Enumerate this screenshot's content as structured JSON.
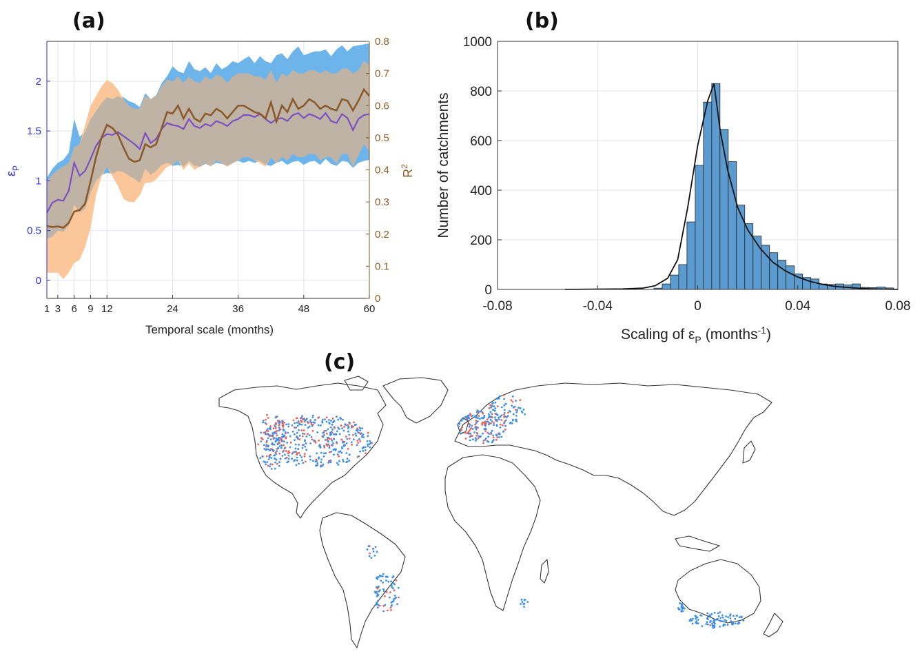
{
  "panels": {
    "a": "(a)",
    "b": "(b)",
    "c": "(c)"
  },
  "colors": {
    "eps_axis": "#2b2be0",
    "r2_axis": "#8a5a1f",
    "eps_band": "#6cb4ea",
    "r2_band": "#fbc79a",
    "overlap_band": "#bfb3a6",
    "eps_line": "#7b4fbf",
    "r2_line": "#8b5a2b",
    "hist_bar": "#5b9bd0",
    "hist_edge": "#222222",
    "positive_dot": "#3b8fe8",
    "negative_dot": "#f0605a",
    "coast": "#333333"
  },
  "chart_data": [
    {
      "id": "a",
      "type": "line",
      "xlabel": "Temporal scale (months)",
      "ylabel_left": "ε",
      "ylabel_left_sub": "P",
      "ylabel_right": "R",
      "ylabel_right_sup": "2",
      "xticks": [
        1,
        3,
        6,
        9,
        12,
        24,
        36,
        48,
        60
      ],
      "yticks_left": [
        "0",
        "0.5",
        "1",
        "1.5",
        "2"
      ],
      "yticks_right": [
        "0",
        "0.1",
        "0.2",
        "0.3",
        "0.4",
        "0.5",
        "0.6",
        "0.7",
        "0.8"
      ],
      "xlim": [
        1,
        60
      ],
      "ylim_left": [
        -0.18,
        2.4
      ],
      "ylim_right": [
        0,
        0.8
      ],
      "grid": true,
      "x": [
        1,
        2,
        3,
        4,
        5,
        6,
        7,
        8,
        9,
        10,
        11,
        12,
        13,
        14,
        15,
        16,
        17,
        18,
        19,
        20,
        21,
        22,
        23,
        24,
        25,
        26,
        27,
        28,
        29,
        30,
        31,
        32,
        33,
        34,
        35,
        36,
        37,
        38,
        39,
        40,
        41,
        42,
        43,
        44,
        45,
        46,
        47,
        48,
        49,
        50,
        51,
        52,
        53,
        54,
        55,
        56,
        57,
        58,
        59,
        60
      ],
      "series": [
        {
          "axis": "left",
          "median": [
            0.68,
            0.78,
            0.81,
            0.8,
            0.9,
            1.18,
            1.05,
            1.1,
            1.22,
            1.35,
            1.43,
            1.47,
            1.46,
            1.49,
            1.45,
            1.41,
            1.37,
            1.32,
            1.48,
            1.38,
            1.42,
            1.52,
            1.58,
            1.56,
            1.55,
            1.52,
            1.62,
            1.55,
            1.53,
            1.57,
            1.55,
            1.6,
            1.58,
            1.55,
            1.6,
            1.62,
            1.66,
            1.66,
            1.64,
            1.67,
            1.62,
            1.58,
            1.62,
            1.63,
            1.6,
            1.66,
            1.68,
            1.63,
            1.67,
            1.65,
            1.62,
            1.68,
            1.6,
            1.58,
            1.67,
            1.63,
            1.51,
            1.62,
            1.66,
            1.67
          ],
          "upper": [
            1.03,
            1.12,
            1.18,
            1.21,
            1.28,
            1.62,
            1.44,
            1.5,
            1.62,
            1.7,
            1.78,
            1.84,
            1.82,
            1.85,
            1.84,
            1.8,
            1.78,
            1.74,
            1.88,
            1.82,
            1.86,
            1.98,
            2.05,
            2.15,
            2.1,
            2.08,
            2.2,
            2.12,
            2.1,
            2.14,
            2.08,
            2.18,
            2.12,
            2.15,
            2.2,
            2.18,
            2.22,
            2.25,
            2.18,
            2.25,
            2.2,
            2.18,
            2.26,
            2.28,
            2.22,
            2.3,
            2.35,
            2.26,
            2.28,
            2.3,
            2.3,
            2.32,
            2.25,
            2.32,
            2.36,
            2.3,
            2.35,
            2.36,
            2.37,
            2.38
          ],
          "lower": [
            0.42,
            0.44,
            0.5,
            0.49,
            0.55,
            0.76,
            0.68,
            0.72,
            0.88,
            1.0,
            1.06,
            1.08,
            1.07,
            1.1,
            1.09,
            1.05,
            1.02,
            0.98,
            1.12,
            1.06,
            1.1,
            1.16,
            1.18,
            1.15,
            1.16,
            1.14,
            1.2,
            1.15,
            1.14,
            1.17,
            1.15,
            1.18,
            1.17,
            1.15,
            1.18,
            1.2,
            1.18,
            1.2,
            1.18,
            1.2,
            1.16,
            1.15,
            1.18,
            1.2,
            1.16,
            1.19,
            1.2,
            1.16,
            1.19,
            1.2,
            1.16,
            1.22,
            1.17,
            1.15,
            1.2,
            1.19,
            1.13,
            1.18,
            1.2,
            1.21
          ]
        },
        {
          "axis": "right",
          "median": [
            0.225,
            0.222,
            0.224,
            0.22,
            0.235,
            0.27,
            0.275,
            0.295,
            0.365,
            0.44,
            0.5,
            0.54,
            0.53,
            0.51,
            0.47,
            0.435,
            0.425,
            0.43,
            0.48,
            0.47,
            0.48,
            0.53,
            0.58,
            0.575,
            0.6,
            0.56,
            0.59,
            0.56,
            0.55,
            0.575,
            0.57,
            0.59,
            0.58,
            0.56,
            0.58,
            0.6,
            0.6,
            0.59,
            0.58,
            0.575,
            0.56,
            0.61,
            0.55,
            0.6,
            0.58,
            0.62,
            0.59,
            0.6,
            0.62,
            0.61,
            0.59,
            0.6,
            0.59,
            0.585,
            0.62,
            0.615,
            0.585,
            0.615,
            0.65,
            0.63
          ],
          "upper": [
            0.365,
            0.385,
            0.4,
            0.41,
            0.42,
            0.47,
            0.48,
            0.54,
            0.6,
            0.63,
            0.66,
            0.68,
            0.67,
            0.65,
            0.62,
            0.6,
            0.59,
            0.59,
            0.63,
            0.62,
            0.63,
            0.66,
            0.68,
            0.675,
            0.69,
            0.67,
            0.69,
            0.675,
            0.67,
            0.69,
            0.68,
            0.695,
            0.69,
            0.67,
            0.69,
            0.7,
            0.7,
            0.7,
            0.69,
            0.69,
            0.68,
            0.71,
            0.67,
            0.7,
            0.69,
            0.71,
            0.7,
            0.7,
            0.71,
            0.71,
            0.7,
            0.71,
            0.7,
            0.7,
            0.715,
            0.715,
            0.7,
            0.71,
            0.74,
            0.725
          ],
          "lower": [
            0.08,
            0.08,
            0.08,
            0.06,
            0.08,
            0.11,
            0.12,
            0.16,
            0.22,
            0.32,
            0.38,
            0.41,
            0.38,
            0.35,
            0.31,
            0.3,
            0.3,
            0.32,
            0.36,
            0.36,
            0.37,
            0.39,
            0.41,
            0.415,
            0.43,
            0.4,
            0.42,
            0.4,
            0.41,
            0.42,
            0.41,
            0.43,
            0.42,
            0.41,
            0.42,
            0.43,
            0.44,
            0.44,
            0.43,
            0.42,
            0.41,
            0.44,
            0.42,
            0.44,
            0.43,
            0.45,
            0.44,
            0.44,
            0.45,
            0.45,
            0.43,
            0.44,
            0.44,
            0.42,
            0.45,
            0.45,
            0.41,
            0.445,
            0.48,
            0.46
          ]
        }
      ]
    },
    {
      "id": "b",
      "type": "bar",
      "xlabel": "Scaling of ε",
      "xlabel_sub": "P",
      "xlabel_unit": "(months",
      "xlabel_unit_sup": "-1",
      "xlabel_unit_close": ")",
      "ylabel": "Number of catchments",
      "xlim": [
        -0.08,
        0.08
      ],
      "ylim": [
        0,
        1000
      ],
      "xticks": [
        "-0.08",
        "-0.04",
        "0",
        "0.04",
        "0.08"
      ],
      "yticks": [
        "0",
        "200",
        "400",
        "600",
        "800",
        "1000"
      ],
      "grid": true,
      "bin_width": 0.0033,
      "bin_starts": [
        -0.0175,
        -0.0142,
        -0.0109,
        -0.0076,
        -0.0043,
        -0.001,
        0.0023,
        0.0056,
        0.0089,
        0.0122,
        0.0155,
        0.0188,
        0.0221,
        0.0254,
        0.0287,
        0.032,
        0.0353,
        0.0386,
        0.0419,
        0.0452,
        0.0485,
        0.0518,
        0.0551,
        0.0584,
        0.0617,
        0.065,
        0.0683,
        0.0716,
        0.0749
      ],
      "counts": [
        5,
        22,
        58,
        100,
        272,
        500,
        755,
        830,
        645,
        515,
        340,
        265,
        215,
        178,
        148,
        118,
        95,
        62,
        48,
        42,
        22,
        20,
        22,
        18,
        22,
        8,
        7,
        10,
        6
      ],
      "fit_x": [
        -0.053,
        -0.03,
        -0.022,
        -0.017,
        -0.012,
        -0.008,
        -0.004,
        0.0,
        0.004,
        0.0065,
        0.009,
        0.012,
        0.016,
        0.02,
        0.025,
        0.03,
        0.035,
        0.04,
        0.045,
        0.05,
        0.055,
        0.06,
        0.065,
        0.07,
        0.075,
        0.08
      ],
      "fit_y": [
        0,
        2,
        5,
        15,
        45,
        120,
        330,
        580,
        760,
        830,
        640,
        480,
        330,
        240,
        165,
        110,
        75,
        50,
        32,
        20,
        12,
        8,
        4,
        2,
        1,
        0
      ]
    }
  ]
}
